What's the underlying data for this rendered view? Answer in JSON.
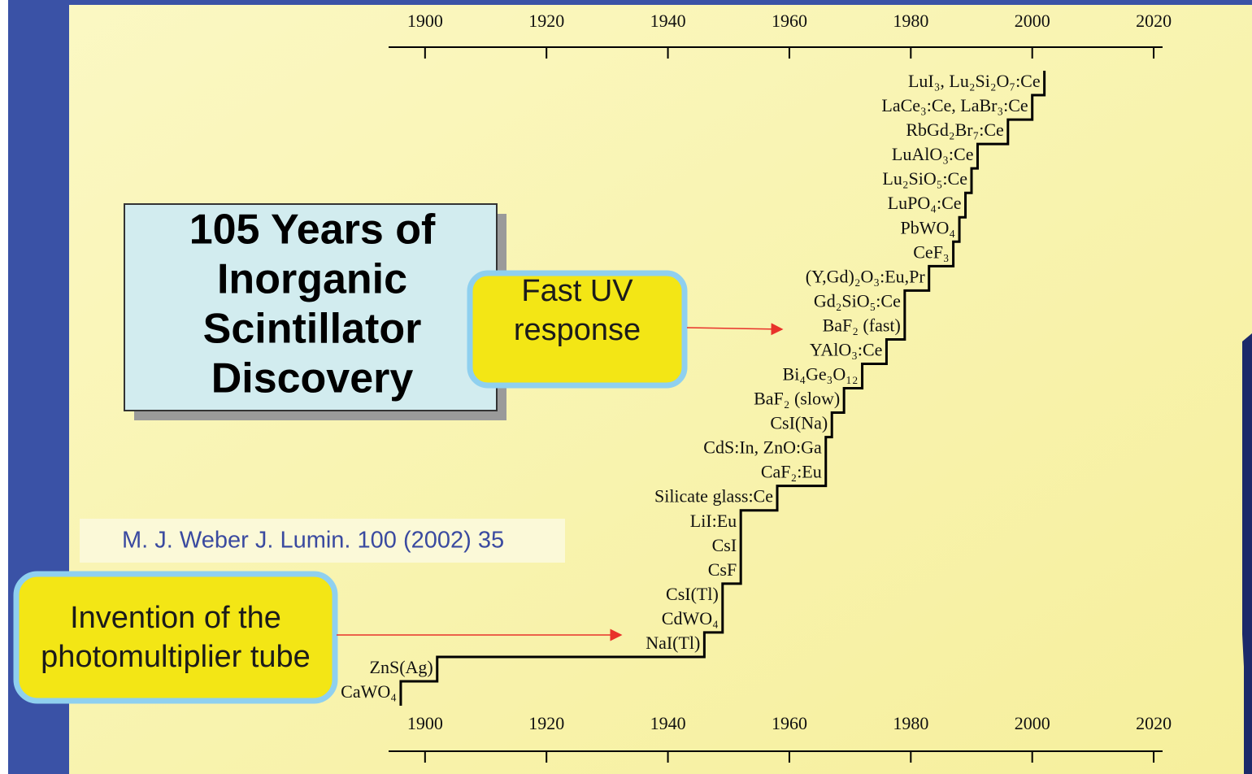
{
  "chart_data": {
    "type": "step",
    "title": [
      "105 Years of",
      "Inorganic",
      "Scintillator",
      "Discovery"
    ],
    "annotations": [
      [
        "Fast UV",
        "response"
      ],
      [
        "Invention of the",
        "photomultiplier tube"
      ]
    ],
    "source": "M. J. Weber J. Lumin. 100 (2002) 35",
    "categories": [
      "CaWO₄",
      "ZnS(Ag)",
      "NaI(Tl)",
      "CdWO₄",
      "CsI(Tl)",
      "CsF",
      "CsI",
      "LiI:Eu",
      "Silicate glass:Ce",
      "CaF₂:Eu",
      "CdS:In, ZnO:Ga",
      "CsI(Na)",
      "BaF₂ (slow)",
      "Bi₄Ge₃O₁₂",
      "YAlO₃:Ce",
      "BaF₂ (fast)",
      "Gd₂SiO₅:Ce",
      "(Y,Gd)₂O₃:Eu,Pr",
      "CeF₃",
      "PbWO₄",
      "LuPO₄:Ce",
      "Lu₂SiO₅:Ce",
      "LuAlO₃:Ce",
      "RbGd₂Br₇:Ce",
      "LaCe₃:Ce, LaBr₃:Ce",
      "LuI₃, Lu₂Si₂O₇:Ce"
    ],
    "x": [
      1896,
      1902,
      1946,
      1949,
      1949,
      1952,
      1952,
      1952,
      1958,
      1966,
      1966,
      1967,
      1969,
      1972,
      1976,
      1979,
      1979,
      1983,
      1987,
      1988,
      1989,
      1990,
      1991,
      1996,
      2000,
      2002
    ],
    "xlim": [
      1894,
      2022
    ],
    "xticks": [
      1900,
      1920,
      1940,
      1960,
      1980,
      2000,
      2020
    ],
    "color": "#000000"
  }
}
